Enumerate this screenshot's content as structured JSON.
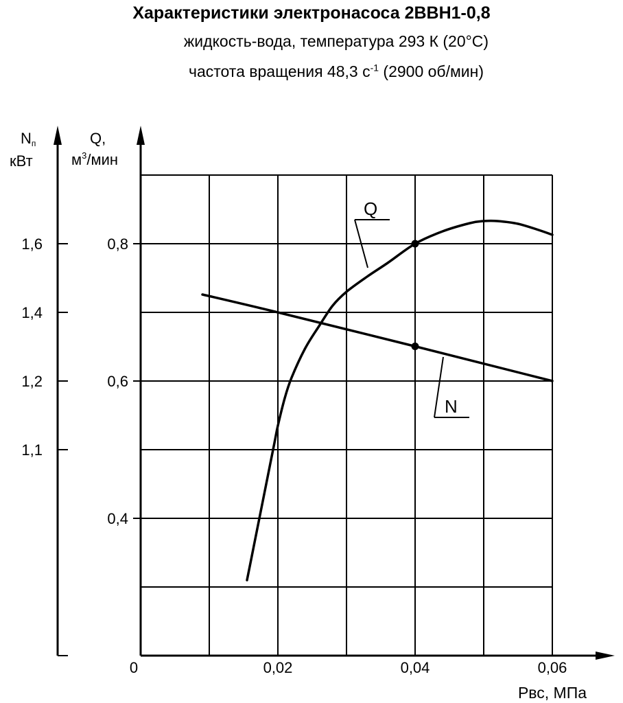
{
  "chart_data": {
    "type": "line",
    "title": "Характеристики электронасоса 2ВВН1-0,8",
    "subtitle_line1": "жидкость-вода, температура 293 К (20°С)",
    "subtitle_line2_prefix": "частота вращения 48,3 с",
    "subtitle_line2_sup": "-1",
    "subtitle_line2_suffix": " (2900 об/мин)",
    "xlabel": "Pвс, МПа",
    "x_origin_label": "0",
    "xlim": [
      0,
      0.06
    ],
    "x_ticks": [
      {
        "value": 0.02,
        "label": "0,02"
      },
      {
        "value": 0.04,
        "label": "0,04"
      },
      {
        "value": 0.06,
        "label": "0,06"
      }
    ],
    "q_axis": {
      "label_line1": "Q,",
      "label_line2_prefix": "м",
      "label_line2_sup": "3",
      "label_line2_suffix": "/мин",
      "ticks": [
        {
          "value": 0.4,
          "label": "0,4"
        },
        {
          "value": 0.6,
          "label": "0,6"
        },
        {
          "value": 0.8,
          "label": "0,8"
        }
      ]
    },
    "n_axis": {
      "label_line1_main": "N",
      "label_line1_sub": "п",
      "label_line2": "кВт",
      "ticks": [
        {
          "value": 1.1,
          "label": "1,1"
        },
        {
          "value": 1.2,
          "label": "1,2"
        },
        {
          "value": 1.4,
          "label": "1,4"
        },
        {
          "value": 1.6,
          "label": "1,6"
        }
      ]
    },
    "grid": true,
    "series": [
      {
        "name": "Q",
        "axis": "Q, м³/мин",
        "x": [
          0.0155,
          0.0165,
          0.0175,
          0.0185,
          0.0195,
          0.02,
          0.021,
          0.022,
          0.024,
          0.026,
          0.028,
          0.03,
          0.033,
          0.036,
          0.04,
          0.044,
          0.048,
          0.05,
          0.052,
          0.055,
          0.058,
          0.06
        ],
        "y": [
          0.31,
          0.36,
          0.41,
          0.46,
          0.51,
          0.535,
          0.575,
          0.605,
          0.648,
          0.68,
          0.71,
          0.73,
          0.752,
          0.772,
          0.8,
          0.818,
          0.83,
          0.833,
          0.833,
          0.829,
          0.82,
          0.813
        ],
        "marker": {
          "x": 0.04,
          "y": 0.8
        }
      },
      {
        "name": "N",
        "axis": "Nп, кВт",
        "x": [
          0.009,
          0.02,
          0.04,
          0.06
        ],
        "y": [
          1.452,
          1.4,
          1.301,
          1.2
        ],
        "marker": {
          "x": 0.04,
          "y": 1.301
        }
      }
    ]
  }
}
